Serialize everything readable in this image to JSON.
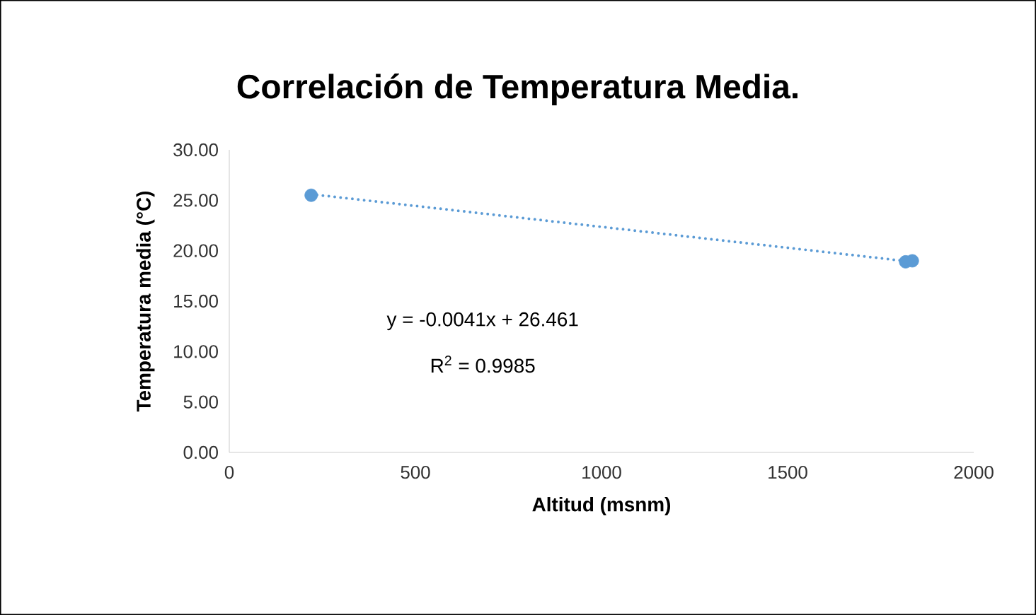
{
  "chart_data": {
    "type": "scatter",
    "title": "Correlación de Temperatura Media.",
    "xlabel": "Altitud (msnm)",
    "ylabel": "Temperatura  media (°C)",
    "series": [
      {
        "type": "scatter",
        "color": "#5b9bd5",
        "marker": "circle",
        "x": [
          220,
          1817,
          1835
        ],
        "values": [
          25.5,
          18.9,
          19.0
        ]
      },
      {
        "type": "line",
        "color": "#5b9bd5",
        "line_style": "dotted",
        "x": [
          220,
          1835
        ],
        "values": [
          25.6,
          18.9
        ]
      }
    ],
    "annotations": [
      "y = -0.0041x + 26.461",
      "R$^{2}$ = 0.9985"
    ],
    "xlim": [
      0,
      2000
    ],
    "ylim": [
      0,
      30
    ],
    "xticks": [
      0,
      500,
      1000,
      1500,
      2000
    ],
    "yticks": [
      {
        "value": 0,
        "label": "0.00"
      },
      {
        "value": 5,
        "label": "5.00"
      },
      {
        "value": 10,
        "label": "10.00"
      },
      {
        "value": 15,
        "label": "15.00"
      },
      {
        "value": 20,
        "label": "20.00"
      },
      {
        "value": 25,
        "label": "25.00"
      },
      {
        "value": 30,
        "label": "30.00"
      }
    ],
    "grid": false
  }
}
